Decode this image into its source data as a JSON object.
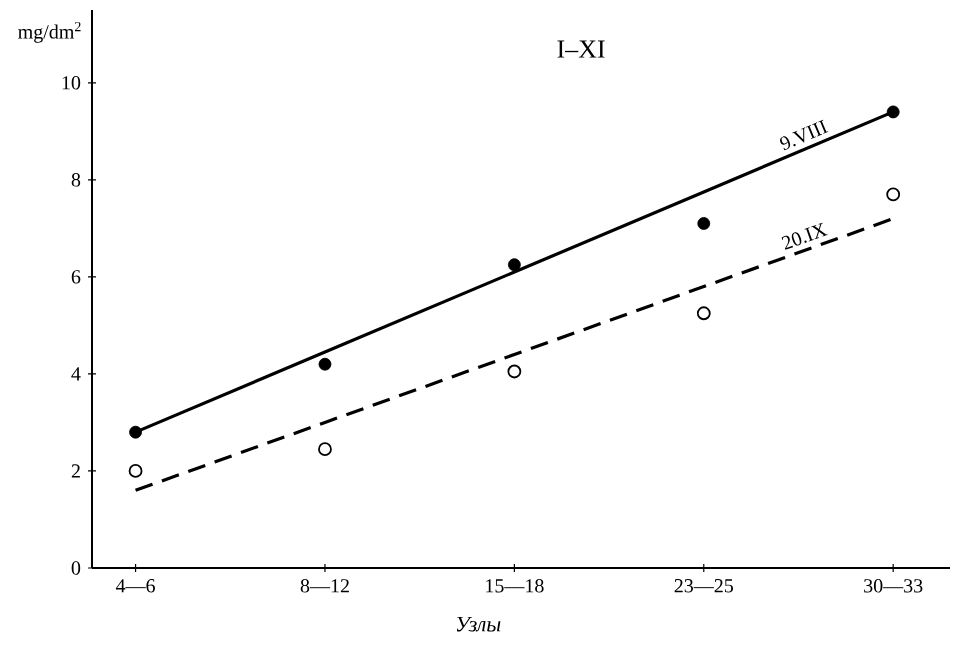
{
  "chart_data": {
    "type": "scatter",
    "title": "I–XI",
    "xlabel": "*Узлы*",
    "ylabel": "mg/dm$^{2}$",
    "categories": [
      "4—6",
      "8—12",
      "15—18",
      "23—25",
      "30—33"
    ],
    "ylim": [
      0,
      11.5
    ],
    "yticks": [
      0,
      2,
      4,
      6,
      8,
      10
    ],
    "legend": false,
    "grid": false,
    "series": [
      {
        "type": "line",
        "name": "9.VIII",
        "color": "#000000",
        "line_style": "solid",
        "marker": "none",
        "values": [
          2.8,
          4.45,
          6.1,
          7.75,
          9.4
        ]
      },
      {
        "type": "line",
        "name": "20.IX",
        "color": "#000000",
        "line_style": "dashed",
        "marker": "none",
        "values": [
          1.6,
          3.0,
          4.4,
          5.8,
          7.2
        ]
      },
      {
        "color": "#000000",
        "marker": "circle",
        "values": [
          2.8,
          4.2,
          6.25,
          7.1,
          9.4
        ]
      },
      {
        "color": "#000000",
        "marker": "open circle",
        "values": [
          2.0,
          2.45,
          4.05,
          5.25,
          7.7
        ]
      }
    ]
  }
}
